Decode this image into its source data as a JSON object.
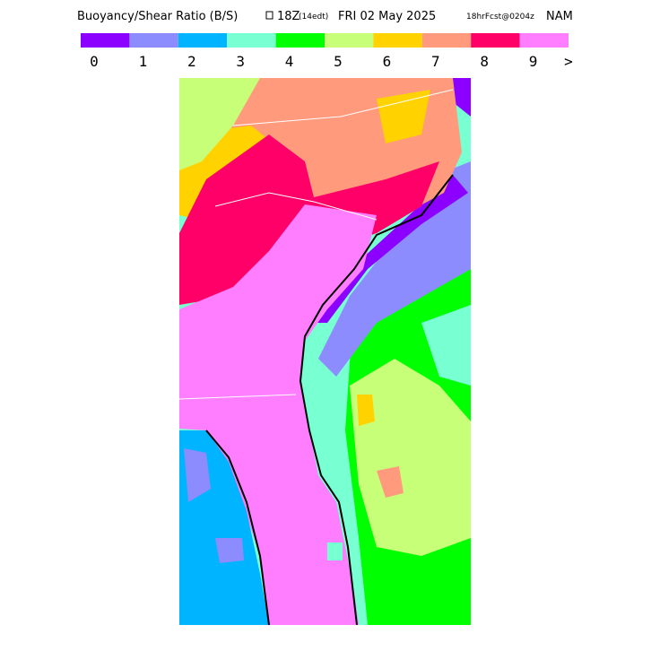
{
  "header": {
    "title": "Buoyancy/Shear Ratio (B/S)",
    "time": "18Z",
    "local_time": "(14edt)",
    "date": "FRI 02 May 2025",
    "forecast": "18hrFcst@0204z",
    "model": "NAM"
  },
  "legend": {
    "colors": [
      "#8c00ff",
      "#8c8cff",
      "#00b4ff",
      "#78ffd2",
      "#00ff00",
      "#c8ff78",
      "#ffd200",
      "#ff9a7d",
      "#ff0069",
      "#ff7dff"
    ],
    "labels": [
      "0",
      "1",
      "2",
      "3",
      "4",
      "5",
      "6",
      "7",
      "8",
      "9",
      ">"
    ]
  }
}
